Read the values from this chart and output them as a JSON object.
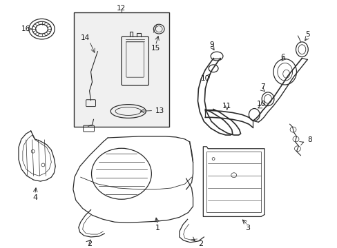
{
  "bg_color": "#ffffff",
  "line_color": "#2a2a2a",
  "label_color": "#111111",
  "fig_width": 4.89,
  "fig_height": 3.6,
  "dpi": 100,
  "box_fill": "#f0f0f0"
}
